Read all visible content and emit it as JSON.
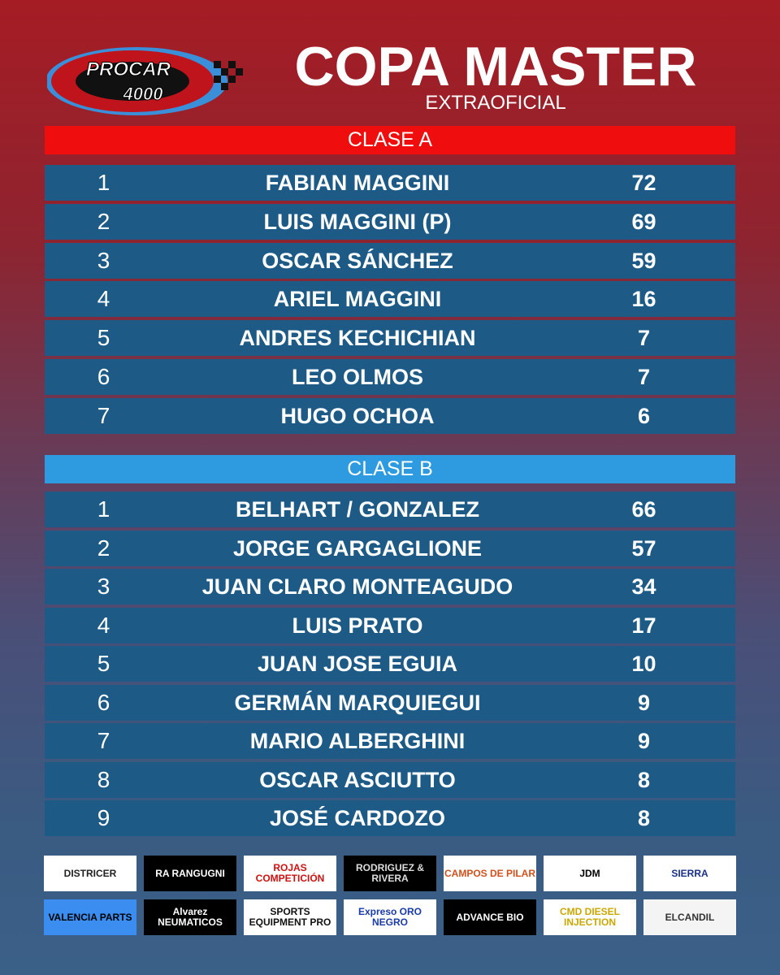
{
  "header": {
    "logo": "PROCAR 4000",
    "title": "COPA MASTER",
    "subtitle": "EXTRAOFICIAL"
  },
  "colors": {
    "clase_a": "#f00d0d",
    "clase_b": "#2e9be0",
    "row": "#1d5a86"
  },
  "clase_a": {
    "label": "CLASE A",
    "rows": [
      {
        "pos": "1",
        "name": "FABIAN MAGGINI",
        "pts": "72"
      },
      {
        "pos": "2",
        "name": "LUIS MAGGINI (P)",
        "pts": "69"
      },
      {
        "pos": "3",
        "name": "OSCAR SÁNCHEZ",
        "pts": "59"
      },
      {
        "pos": "4",
        "name": "ARIEL MAGGINI",
        "pts": "16"
      },
      {
        "pos": "5",
        "name": "ANDRES KECHICHIAN",
        "pts": "7"
      },
      {
        "pos": "6",
        "name": "LEO OLMOS",
        "pts": "7"
      },
      {
        "pos": "7",
        "name": "HUGO OCHOA",
        "pts": "6"
      }
    ]
  },
  "clase_b": {
    "label": "CLASE B",
    "rows": [
      {
        "pos": "1",
        "name": "BELHART / GONZALEZ",
        "pts": "66"
      },
      {
        "pos": "2",
        "name": "JORGE GARGAGLIONE",
        "pts": "57"
      },
      {
        "pos": "3",
        "name": "JUAN CLARO MONTEAGUDO",
        "pts": "34"
      },
      {
        "pos": "4",
        "name": "LUIS PRATO",
        "pts": "17"
      },
      {
        "pos": "5",
        "name": "JUAN JOSE EGUIA",
        "pts": "10"
      },
      {
        "pos": "6",
        "name": "GERMÁN MARQUIEGUI",
        "pts": "9"
      },
      {
        "pos": "7",
        "name": "MARIO  ALBERGHINI",
        "pts": "9"
      },
      {
        "pos": "8",
        "name": "OSCAR ASCIUTTO",
        "pts": "8"
      },
      {
        "pos": "9",
        "name": "JOSÉ CARDOZO",
        "pts": "8"
      }
    ]
  },
  "sponsors": [
    {
      "name": "DISTRICER",
      "bg": "#ffffff",
      "fg": "#222222"
    },
    {
      "name": "RA RANGUGNI",
      "bg": "#000000",
      "fg": "#ffffff"
    },
    {
      "name": "ROJAS COMPETICIÓN",
      "bg": "#ffffff",
      "fg": "#d01010"
    },
    {
      "name": "RODRIGUEZ & RIVERA",
      "bg": "#000000",
      "fg": "#dddddd"
    },
    {
      "name": "CAMPOS DE PILAR",
      "bg": "#ffffff",
      "fg": "#d2511c"
    },
    {
      "name": "JDM",
      "bg": "#ffffff",
      "fg": "#000000"
    },
    {
      "name": "SIERRA",
      "bg": "#ffffff",
      "fg": "#1a2f8a"
    },
    {
      "name": "VALENCIA PARTS",
      "bg": "#3b8ef0",
      "fg": "#000000"
    },
    {
      "name": "Alvarez NEUMATICOS",
      "bg": "#000000",
      "fg": "#ffffff"
    },
    {
      "name": "SPORTS EQUIPMENT PRO",
      "bg": "#ffffff",
      "fg": "#111111"
    },
    {
      "name": "Expreso ORO NEGRO",
      "bg": "#ffffff",
      "fg": "#1a3aa8"
    },
    {
      "name": "ADVANCE BIO",
      "bg": "#000000",
      "fg": "#ffffff"
    },
    {
      "name": "CMD DIESEL INJECTION",
      "bg": "#ffffff",
      "fg": "#c9a800"
    },
    {
      "name": "ELCANDIL",
      "bg": "#f4f4f4",
      "fg": "#333333"
    }
  ]
}
